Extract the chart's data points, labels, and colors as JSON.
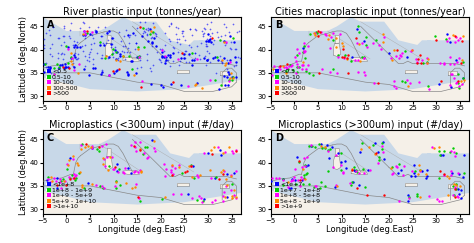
{
  "panels": [
    {
      "label": "A",
      "title": "River plastic input (tonnes/year)",
      "legend_labels": [
        "<0.5",
        "0.5-10",
        "10-100",
        "100-500",
        ">500"
      ],
      "legend_colors": [
        "#0000ff",
        "#00cc00",
        "#ff00ff",
        "#ff8800",
        "#ff0000"
      ]
    },
    {
      "label": "B",
      "title": "Cities macroplastic input (tonnes/year)",
      "legend_labels": [
        "<0.5",
        "0.5-10",
        "10-100",
        "100-500",
        ">500"
      ],
      "legend_colors": [
        "#0000ff",
        "#00cc00",
        "#ff00ff",
        "#ff8800",
        "#ff0000"
      ]
    },
    {
      "label": "C",
      "title": "Microplastics (<300um) input (#/day)",
      "legend_labels": [
        "<1e+8",
        "1e+8 - 1e+9",
        "1e+9 - 5e+9",
        "5e+9 - 1e+10",
        ">1e+10"
      ],
      "legend_colors": [
        "#0000ff",
        "#00cc00",
        "#ff00ff",
        "#ff8800",
        "#ff0000"
      ]
    },
    {
      "label": "D",
      "title": "Microplastics (>300um) input (#/day)",
      "legend_labels": [
        "<1e+7",
        "1e+7 - 1e+8",
        "1e+8 - 5e+8",
        "5e+8 - 1e+9",
        ">1e+9"
      ],
      "legend_colors": [
        "#0000ff",
        "#00cc00",
        "#ff00ff",
        "#ff8800",
        "#ff0000"
      ]
    }
  ],
  "xlim": [
    -5,
    37
  ],
  "ylim": [
    29,
    47
  ],
  "xlabel": "Longitude (deg.East)",
  "ylabel": "Latitude (deg.North)",
  "bg_color": "#e8e8e8",
  "land_color": "#f5f0e8",
  "sea_color": "#c8d8e8",
  "coast_color": "#888888",
  "border_color": "#aaaaaa",
  "title_fontsize": 7,
  "label_fontsize": 6,
  "tick_fontsize": 5,
  "legend_fontsize": 4.5
}
